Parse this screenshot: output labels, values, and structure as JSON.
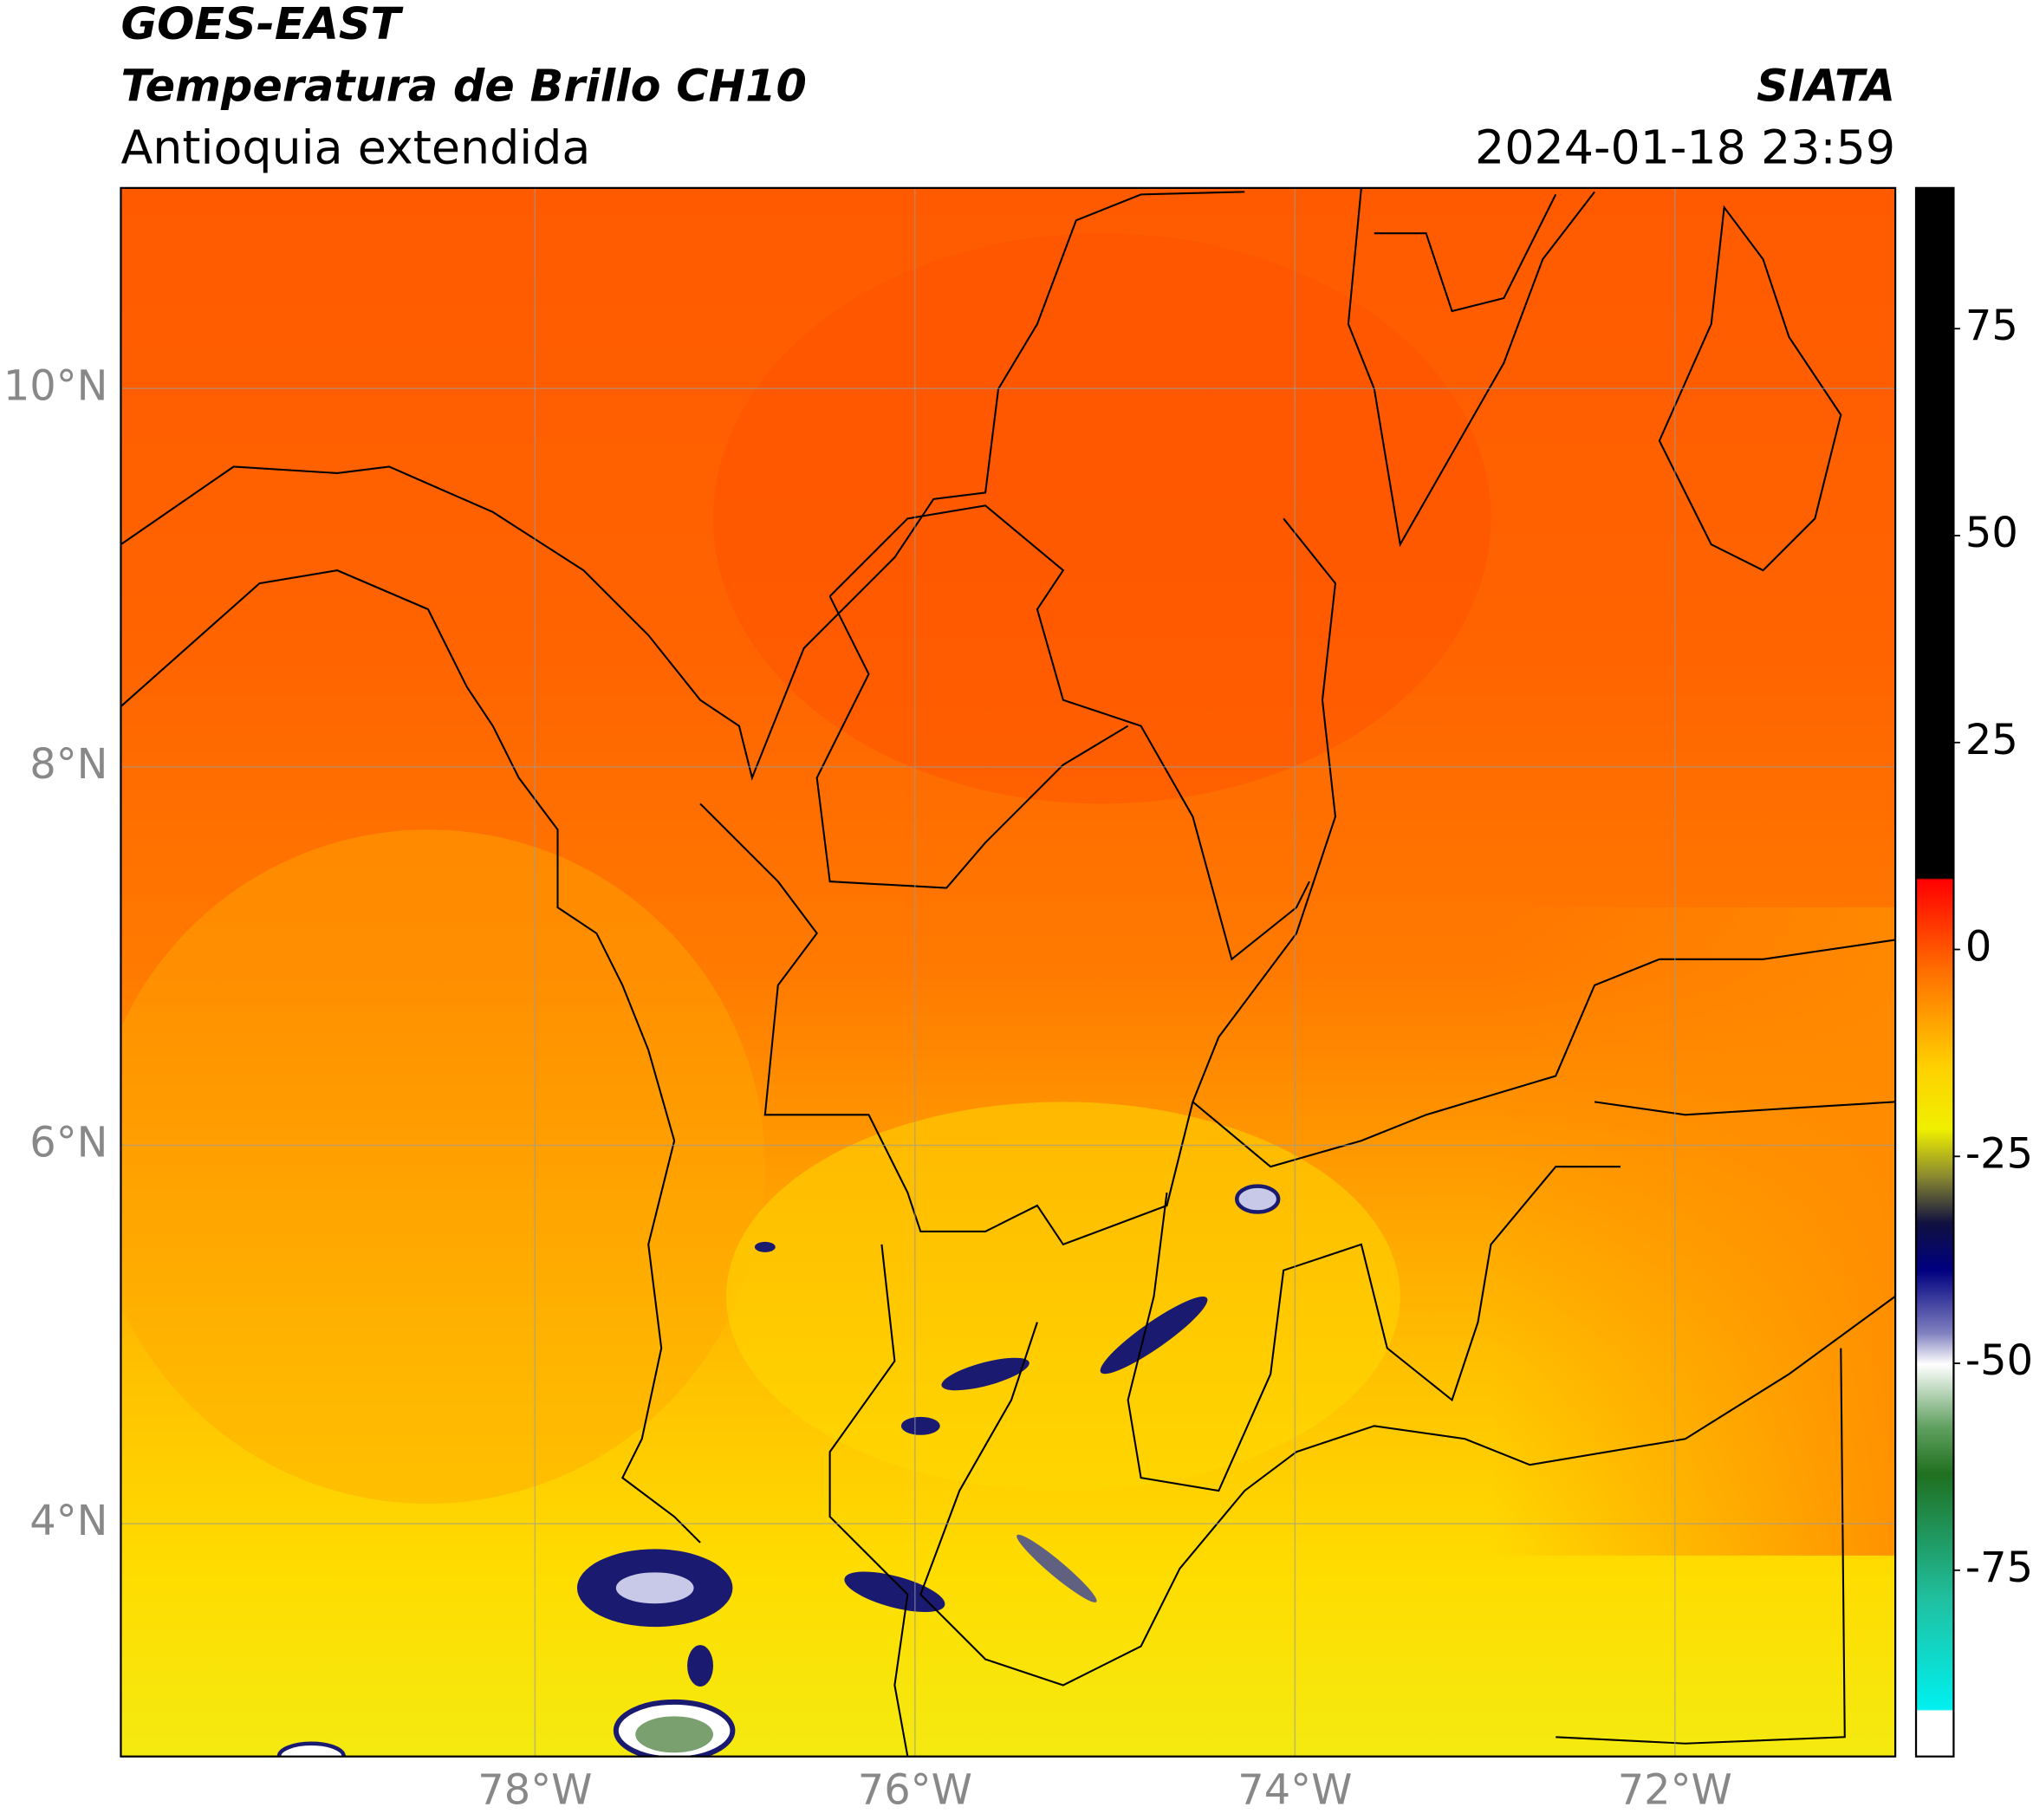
{
  "header": {
    "title": "GOES-EAST",
    "subtitle": "Temperatura de Brillo CH10",
    "region": "Antioquia extendida",
    "source": "SIATA",
    "datetime": "2024-01-18 23:59"
  },
  "map": {
    "lat_range": [
      2.77,
      11.06
    ],
    "lon_range": [
      -80.18,
      -70.84
    ],
    "lat_ticks": [
      {
        "value": 10,
        "label": "10°N"
      },
      {
        "value": 8,
        "label": "8°N"
      },
      {
        "value": 6,
        "label": "6°N"
      },
      {
        "value": 4,
        "label": "4°N"
      }
    ],
    "lon_ticks": [
      {
        "value": -78,
        "label": "78°W"
      },
      {
        "value": -76,
        "label": "76°W"
      },
      {
        "value": -74,
        "label": "74°W"
      },
      {
        "value": -72,
        "label": "72°W"
      }
    ],
    "grid": true
  },
  "colorbar": {
    "range": [
      -97.5,
      92
    ],
    "ticks": [
      75,
      50,
      25,
      0,
      -25,
      -50,
      -75
    ]
  }
}
